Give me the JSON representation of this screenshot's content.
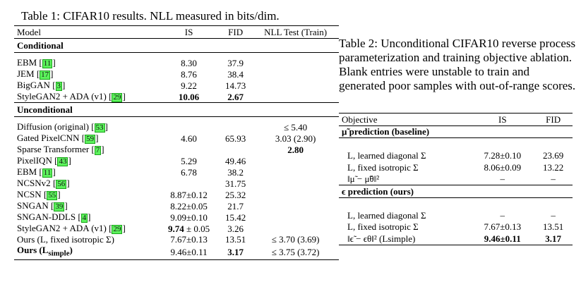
{
  "table1": {
    "caption": "Table 1: CIFAR10 results. NLL measured in bits/dim.",
    "headers": [
      "Model",
      "IS",
      "FID",
      "NLL Test (Train)"
    ],
    "sections": [
      {
        "title": "Conditional",
        "rows": [
          {
            "model": "EBM",
            "cite": "11",
            "is": "8.30",
            "fid": "37.9",
            "nll": ""
          },
          {
            "model": "JEM",
            "cite": "17",
            "is": "8.76",
            "fid": "38.4",
            "nll": ""
          },
          {
            "model": "BigGAN",
            "cite": "3",
            "is": "9.22",
            "fid": "14.73",
            "nll": ""
          },
          {
            "model": "StyleGAN2 + ADA (v1)",
            "cite": "29",
            "is": "10.06",
            "fid": "2.67",
            "nll": "",
            "bold_is": true,
            "bold_fid": true
          }
        ]
      },
      {
        "title": "Unconditional",
        "rows": [
          {
            "model": "Diffusion (original)",
            "cite": "53",
            "is": "",
            "fid": "",
            "nll": "≤ 5.40"
          },
          {
            "model": "Gated PixelCNN",
            "cite": "59",
            "is": "4.60",
            "fid": "65.93",
            "nll": "3.03 (2.90)"
          },
          {
            "model": "Sparse Transformer",
            "cite": "7",
            "is": "",
            "fid": "",
            "nll": "2.80",
            "bold_nll": true
          },
          {
            "model": "PixelIQN",
            "cite": "43",
            "is": "5.29",
            "fid": "49.46",
            "nll": ""
          },
          {
            "model": "EBM",
            "cite": "11",
            "is": "6.78",
            "fid": "38.2",
            "nll": ""
          },
          {
            "model": "NCSNv2",
            "cite": "56",
            "is": "",
            "fid": "31.75",
            "nll": ""
          },
          {
            "model": "NCSN",
            "cite": "55",
            "is": "8.87±0.12",
            "fid": "25.32",
            "nll": ""
          },
          {
            "model": "SNGAN",
            "cite": "39",
            "is": "8.22±0.05",
            "fid": "21.7",
            "nll": ""
          },
          {
            "model": "SNGAN-DDLS",
            "cite": "4",
            "is": "9.09±0.10",
            "fid": "15.42",
            "nll": ""
          },
          {
            "model": "StyleGAN2 + ADA (v1)",
            "cite": "29",
            "is_bold_part": "9.74",
            "is": " ± 0.05",
            "fid": "3.26",
            "nll": ""
          },
          {
            "model": "Ours (L, fixed isotropic Σ)",
            "cite": "",
            "is": "7.67±0.13",
            "fid": "13.51",
            "nll": "≤ 3.70 (3.69)"
          },
          {
            "model": "Ours (L",
            "model_sub": "simple",
            "model_end": ")",
            "cite": "",
            "is": "9.46±0.11",
            "fid": "3.17",
            "nll": "≤ 3.75 (3.72)",
            "bold_model": true,
            "bold_fid": true
          }
        ]
      }
    ]
  },
  "table2": {
    "caption": "Table 2: Unconditional CIFAR10 reverse process parameterization and training objective ablation. Blank entries were unstable to train and generated poor samples with out-of-range scores.",
    "headers": [
      "Objective",
      "IS",
      "FID"
    ],
    "sections": [
      {
        "title": "μ̃ prediction (baseline)",
        "rows": [
          {
            "objective": "L, learned diagonal Σ",
            "is": "7.28±0.10",
            "fid": "23.69"
          },
          {
            "objective": "L, fixed isotropic Σ",
            "is": "8.06±0.09",
            "fid": "13.22"
          },
          {
            "objective": "‖μ̃ − μ̃θ‖²",
            "is": "–",
            "fid": "–"
          }
        ]
      },
      {
        "title": "ϵ prediction (ours)",
        "rows": [
          {
            "objective": "L, learned diagonal Σ",
            "is": "–",
            "fid": "–"
          },
          {
            "objective": "L, fixed isotropic Σ",
            "is": "7.67±0.13",
            "fid": "13.51"
          },
          {
            "objective": "‖ϵ̃ − ϵθ‖² (Lsimple)",
            "is": "9.46±0.11",
            "fid": "3.17",
            "bold_is": true,
            "bold_fid": true
          }
        ]
      }
    ]
  }
}
